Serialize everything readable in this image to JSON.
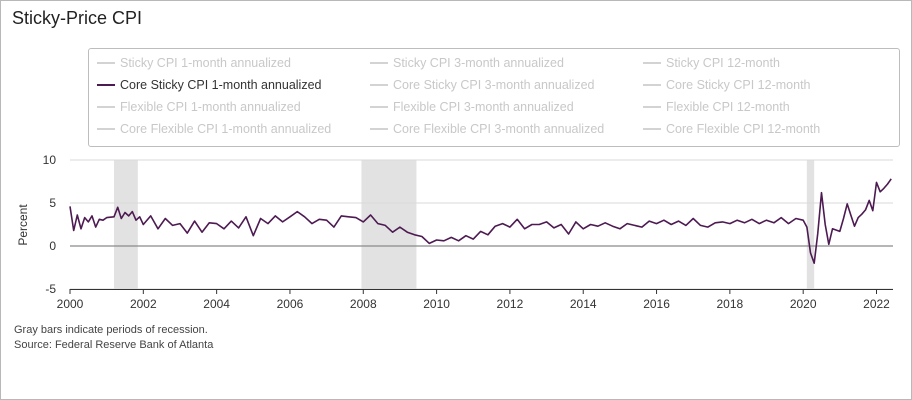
{
  "title": "Sticky-Price CPI",
  "legend": [
    {
      "label": "Sticky CPI 1-month annualized",
      "active": false
    },
    {
      "label": "Sticky CPI 3-month annualized",
      "active": false
    },
    {
      "label": "Sticky CPI 12-month",
      "active": false
    },
    {
      "label": "Core Sticky CPI 1-month annualized",
      "active": true
    },
    {
      "label": "Core Sticky CPI 3-month annualized",
      "active": false
    },
    {
      "label": "Core Sticky CPI 12-month",
      "active": false
    },
    {
      "label": "Flexible CPI 1-month annualized",
      "active": false
    },
    {
      "label": "Flexible CPI 3-month annualized",
      "active": false
    },
    {
      "label": "Flexible CPI 12-month",
      "active": false
    },
    {
      "label": "Core Flexible CPI 1-month annualized",
      "active": false
    },
    {
      "label": "Core Flexible CPI 3-month annualized",
      "active": false
    },
    {
      "label": "Core Flexible CPI 12-month",
      "active": false
    }
  ],
  "notes": {
    "recession": "Gray bars indicate periods of recession.",
    "source": "Source: Federal Reserve Bank of Atlanta"
  },
  "colors": {
    "series": "#4d1a52",
    "recession": "#e2e2e2",
    "zero_line": "#8a8a8a",
    "grid": "#d9d9d9"
  },
  "chart_data": {
    "type": "line",
    "title": "Sticky-Price CPI",
    "xlabel": "",
    "ylabel": "Percent",
    "xlim": [
      2000.0,
      2022.45
    ],
    "ylim": [
      -5,
      10
    ],
    "yticks": [
      -5,
      0,
      5,
      10
    ],
    "xticks": [
      2000,
      2002,
      2004,
      2006,
      2008,
      2010,
      2012,
      2014,
      2016,
      2018,
      2020,
      2022
    ],
    "grid": true,
    "legend_position": "top",
    "recessions": [
      [
        2001.2,
        2001.85
      ],
      [
        2007.95,
        2009.45
      ],
      [
        2020.1,
        2020.3
      ]
    ],
    "series": [
      {
        "name": "Core Sticky CPI 1-month annualized",
        "x": [
          2000.0,
          2000.1,
          2000.2,
          2000.3,
          2000.4,
          2000.5,
          2000.6,
          2000.7,
          2000.8,
          2000.9,
          2001.0,
          2001.2,
          2001.3,
          2001.4,
          2001.5,
          2001.6,
          2001.7,
          2001.8,
          2001.9,
          2002.0,
          2002.2,
          2002.4,
          2002.6,
          2002.8,
          2003.0,
          2003.2,
          2003.4,
          2003.6,
          2003.8,
          2004.0,
          2004.2,
          2004.4,
          2004.6,
          2004.8,
          2005.0,
          2005.2,
          2005.4,
          2005.6,
          2005.8,
          2006.0,
          2006.2,
          2006.4,
          2006.6,
          2006.8,
          2007.0,
          2007.2,
          2007.4,
          2007.6,
          2007.8,
          2008.0,
          2008.2,
          2008.4,
          2008.6,
          2008.8,
          2009.0,
          2009.2,
          2009.4,
          2009.6,
          2009.8,
          2010.0,
          2010.2,
          2010.4,
          2010.6,
          2010.8,
          2011.0,
          2011.2,
          2011.4,
          2011.6,
          2011.8,
          2012.0,
          2012.2,
          2012.4,
          2012.6,
          2012.8,
          2013.0,
          2013.2,
          2013.4,
          2013.6,
          2013.8,
          2014.0,
          2014.2,
          2014.4,
          2014.6,
          2014.8,
          2015.0,
          2015.2,
          2015.4,
          2015.6,
          2015.8,
          2016.0,
          2016.2,
          2016.4,
          2016.6,
          2016.8,
          2017.0,
          2017.2,
          2017.4,
          2017.6,
          2017.8,
          2018.0,
          2018.2,
          2018.4,
          2018.6,
          2018.8,
          2019.0,
          2019.2,
          2019.4,
          2019.6,
          2019.8,
          2020.0,
          2020.1,
          2020.2,
          2020.3,
          2020.4,
          2020.5,
          2020.6,
          2020.7,
          2020.8,
          2021.0,
          2021.1,
          2021.2,
          2021.3,
          2021.4,
          2021.5,
          2021.6,
          2021.7,
          2021.8,
          2021.9,
          2022.0,
          2022.1,
          2022.2,
          2022.3,
          2022.4
        ],
        "values": [
          4.6,
          1.8,
          3.6,
          2.0,
          3.3,
          2.8,
          3.5,
          2.2,
          3.1,
          3.0,
          3.3,
          3.4,
          4.5,
          3.2,
          3.9,
          3.5,
          4.0,
          3.0,
          3.4,
          2.5,
          3.5,
          2.0,
          3.2,
          2.4,
          2.6,
          1.5,
          2.9,
          1.6,
          2.7,
          2.6,
          2.0,
          2.9,
          2.1,
          3.4,
          1.2,
          3.2,
          2.6,
          3.5,
          2.8,
          3.4,
          4.0,
          3.4,
          2.6,
          3.1,
          3.0,
          2.2,
          3.5,
          3.4,
          3.3,
          2.8,
          3.6,
          2.6,
          2.4,
          1.6,
          2.2,
          1.6,
          1.3,
          1.1,
          0.3,
          0.7,
          0.6,
          1.0,
          0.6,
          1.2,
          0.8,
          1.7,
          1.3,
          2.3,
          2.6,
          2.2,
          3.1,
          2.0,
          2.5,
          2.5,
          2.8,
          2.1,
          2.5,
          1.4,
          2.8,
          2.0,
          2.5,
          2.3,
          2.7,
          2.3,
          2.0,
          2.6,
          2.4,
          2.2,
          2.9,
          2.6,
          3.0,
          2.5,
          2.9,
          2.4,
          3.2,
          2.4,
          2.2,
          2.7,
          2.8,
          2.6,
          3.0,
          2.7,
          3.1,
          2.6,
          3.0,
          2.7,
          3.3,
          2.6,
          3.2,
          3.0,
          2.2,
          -0.8,
          -2.0,
          1.5,
          6.2,
          2.5,
          0.2,
          2.0,
          1.7,
          3.2,
          4.9,
          3.6,
          2.3,
          3.3,
          3.7,
          4.2,
          5.3,
          4.1,
          7.4,
          6.3,
          6.7,
          7.2,
          7.8
        ]
      }
    ]
  }
}
